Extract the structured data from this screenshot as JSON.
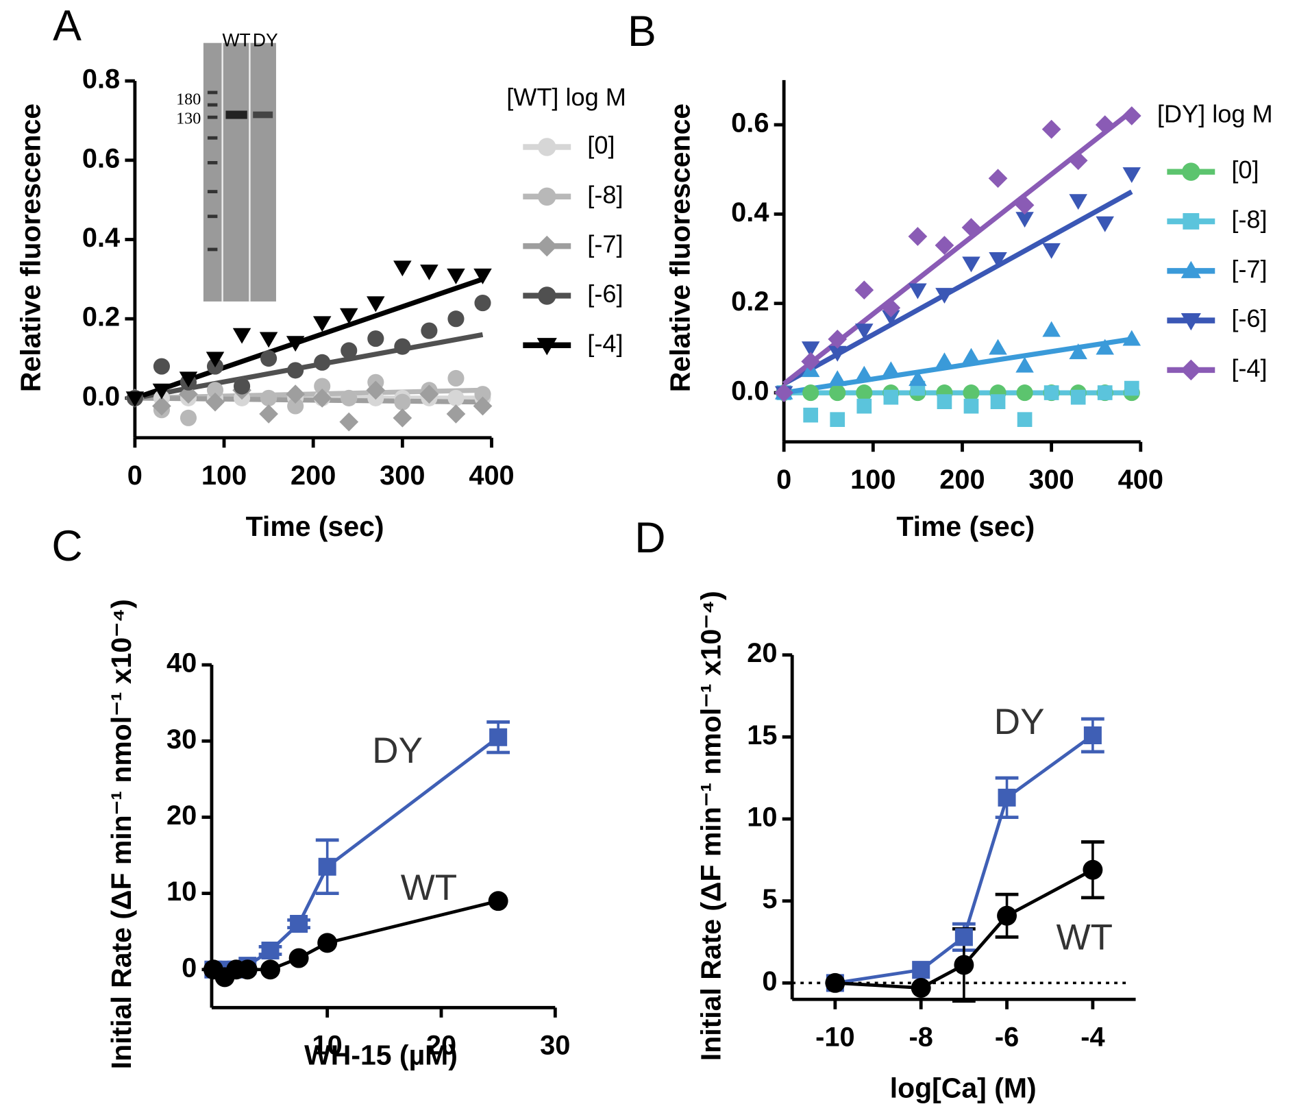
{
  "chart_data": [
    {
      "type": "scatter",
      "panel": "A",
      "xlabel": "Time (sec)",
      "ylabel": "Relative fluorescence",
      "legend_title": "[WT] log M",
      "xlim": [
        0,
        400
      ],
      "xticks": [
        0,
        100,
        200,
        300,
        400
      ],
      "ylim": [
        -0.1,
        0.8
      ],
      "yticks": [
        {
          "value": 0,
          "label": "0.0"
        },
        0.2,
        0.4,
        0.6,
        0.8
      ],
      "x": [
        0,
        30,
        60,
        90,
        120,
        150,
        180,
        210,
        240,
        270,
        300,
        330,
        360,
        390
      ],
      "fit_x": [
        0,
        390
      ],
      "inset": {
        "lanes": [
          "WT",
          "DY"
        ],
        "ladder": [
          180,
          130
        ]
      },
      "series": [
        {
          "name": "[0]",
          "color": "#d6d6d6",
          "marker": "circle",
          "values": [
            0,
            0,
            0,
            0,
            0,
            0,
            0,
            0,
            0,
            0,
            0,
            0,
            0,
            0
          ],
          "fit": [
            0,
            0
          ]
        },
        {
          "name": "[-8]",
          "color": "#b8b8b8",
          "marker": "circle",
          "values": [
            0,
            -0.03,
            -0.05,
            0.02,
            0.03,
            0,
            -0.02,
            0.03,
            0,
            0.04,
            -0.01,
            0.02,
            0.05,
            0.01
          ],
          "fit": [
            0,
            0.02
          ]
        },
        {
          "name": "[-7]",
          "color": "#9e9e9e",
          "marker": "diamond",
          "values": [
            0,
            -0.02,
            0.01,
            -0.01,
            0.02,
            -0.04,
            0.01,
            0,
            -0.06,
            0.02,
            -0.05,
            0.01,
            -0.04,
            -0.02
          ],
          "fit": [
            0,
            -0.01
          ]
        },
        {
          "name": "[-6]",
          "color": "#505050",
          "marker": "circle",
          "values": [
            0,
            0.08,
            0.04,
            0.08,
            0.03,
            0.1,
            0.07,
            0.09,
            0.12,
            0.15,
            0.13,
            0.17,
            0.2,
            0.24
          ],
          "fit": [
            0,
            0.16
          ]
        },
        {
          "name": "[-4]",
          "color": "#000000",
          "marker": "triangle-down",
          "values": [
            0,
            0.02,
            0.05,
            0.1,
            0.16,
            0.15,
            0.14,
            0.19,
            0.21,
            0.24,
            0.33,
            0.32,
            0.31,
            0.31
          ],
          "fit": [
            0,
            0.3
          ]
        }
      ]
    },
    {
      "type": "scatter",
      "panel": "B",
      "xlabel": "Time (sec)",
      "ylabel": "Relative fluorescence",
      "legend_title": "[DY] log M",
      "xlim": [
        0,
        400
      ],
      "xticks": [
        0,
        100,
        200,
        300,
        400
      ],
      "ylim": [
        -0.11,
        0.7
      ],
      "yticks": [
        {
          "value": 0,
          "label": "0.0"
        },
        0.2,
        0.4,
        0.6
      ],
      "x": [
        0,
        30,
        60,
        90,
        120,
        150,
        180,
        210,
        240,
        270,
        300,
        330,
        360,
        390
      ],
      "fit_x": [
        0,
        390
      ],
      "series": [
        {
          "name": "[0]",
          "color": "#5cc46e",
          "marker": "circle",
          "values": [
            0,
            0,
            0,
            0,
            0,
            0,
            0,
            0,
            0,
            0,
            0,
            0,
            0,
            0
          ],
          "fit": [
            0,
            0
          ]
        },
        {
          "name": "[-8]",
          "color": "#5bc4dc",
          "marker": "square",
          "values": [
            0,
            -0.05,
            -0.06,
            -0.03,
            -0.01,
            0.01,
            -0.02,
            -0.03,
            -0.02,
            -0.06,
            0,
            -0.01,
            0,
            0.01
          ],
          "fit": [
            0,
            0
          ]
        },
        {
          "name": "[-7]",
          "color": "#3a9ad9",
          "marker": "triangle-up",
          "values": [
            0,
            0.05,
            0.03,
            0.04,
            0.05,
            0.03,
            0.07,
            0.08,
            0.1,
            0.06,
            0.14,
            0.09,
            0.1,
            0.12
          ],
          "fit": [
            0,
            0.12
          ]
        },
        {
          "name": "[-6]",
          "color": "#3a57b5",
          "marker": "triangle-down",
          "values": [
            0,
            0.1,
            0.09,
            0.14,
            0.17,
            0.23,
            0.22,
            0.29,
            0.3,
            0.39,
            0.32,
            0.43,
            0.38,
            0.49
          ],
          "fit": [
            0.02,
            0.45
          ]
        },
        {
          "name": "[-4]",
          "color": "#8a5bb5",
          "marker": "diamond",
          "values": [
            0,
            0.07,
            0.12,
            0.23,
            0.19,
            0.35,
            0.33,
            0.37,
            0.48,
            0.42,
            0.59,
            0.52,
            0.6,
            0.62
          ],
          "fit": [
            0.02,
            0.63
          ]
        }
      ]
    },
    {
      "type": "line",
      "panel": "C",
      "xlabel": "WH-15 (µM)",
      "ylabel": "Initial Rate (ΔF min⁻¹ nmol⁻¹ x10⁻⁴)",
      "xlim": [
        0,
        30
      ],
      "xticks": [
        10,
        20,
        30
      ],
      "ylim": [
        -5,
        40
      ],
      "yticks": [
        0,
        10,
        20,
        30,
        40
      ],
      "x": [
        0,
        1,
        2,
        3,
        5,
        7.5,
        10,
        25
      ],
      "series": [
        {
          "name": "DY",
          "color": "#3f5fb5",
          "marker": "square",
          "values": [
            0,
            0,
            0,
            0.5,
            2.5,
            6,
            13.5,
            30.5
          ],
          "errors": [
            0,
            0,
            0,
            0,
            0.5,
            0.5,
            3.5,
            2
          ]
        },
        {
          "name": "WT",
          "color": "#000000",
          "marker": "circle",
          "values": [
            0,
            -1,
            0,
            0,
            0,
            1.5,
            3.5,
            9
          ],
          "errors": [
            0,
            0,
            0,
            0,
            0,
            0,
            0,
            0
          ]
        }
      ]
    },
    {
      "type": "line",
      "panel": "D",
      "xlabel": "log[Ca] (M)",
      "ylabel": "Initial Rate (ΔF min⁻¹ nmol⁻¹ x10⁻⁴)",
      "xlim": [
        -11,
        -3
      ],
      "xticks": [
        -10,
        -8,
        -6,
        -4
      ],
      "ylim": [
        -1,
        20
      ],
      "yticks": [
        0,
        5,
        10,
        15,
        20
      ],
      "zero_line": true,
      "x": [
        -10,
        -8,
        -7,
        -6,
        -4
      ],
      "series": [
        {
          "name": "DY",
          "color": "#3f5fb5",
          "marker": "square",
          "values": [
            0,
            0.8,
            2.8,
            11.3,
            15.1
          ],
          "errors": [
            0,
            0,
            0.8,
            1.2,
            1
          ]
        },
        {
          "name": "WT",
          "color": "#000000",
          "marker": "circle",
          "values": [
            0,
            -0.3,
            1.1,
            4.1,
            6.9
          ],
          "errors": [
            0,
            0,
            2.2,
            1.3,
            1.7
          ]
        }
      ]
    }
  ]
}
